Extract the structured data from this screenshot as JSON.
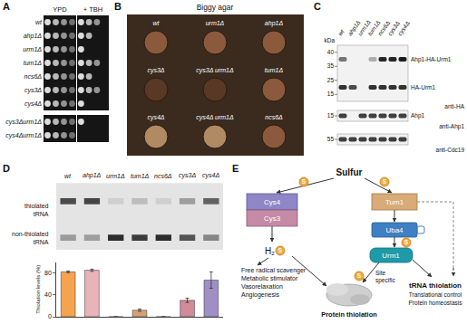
{
  "panels": {
    "A": {
      "letter": "A",
      "columns": [
        "YPD",
        "+ TBH"
      ],
      "groups": [
        [
          {
            "strain": "wt",
            "growth": [
              4,
              3
            ]
          },
          {
            "strain": "ahp1Δ",
            "growth": [
              4,
              2
            ]
          },
          {
            "strain": "urm1Δ",
            "growth": [
              4,
              1
            ]
          },
          {
            "strain": "tum1Δ",
            "growth": [
              4,
              3
            ]
          },
          {
            "strain": "ncs6Δ",
            "growth": [
              4,
              2
            ]
          },
          {
            "strain": "cys3Δ",
            "growth": [
              4,
              3
            ]
          },
          {
            "strain": "cys4Δ",
            "growth": [
              4,
              1
            ]
          }
        ],
        [
          {
            "strain": "cys3Δurm1Δ",
            "growth": [
              4,
              1
            ]
          },
          {
            "strain": "cys4Δurm1Δ",
            "growth": [
              4,
              0
            ]
          }
        ]
      ]
    },
    "B": {
      "letter": "B",
      "title": "Biggy agar",
      "plates": [
        [
          {
            "strain": "wt",
            "color": "#8b5a3c"
          },
          {
            "strain": "urm1Δ",
            "color": "#8b5a3c"
          },
          {
            "strain": "ahp1Δ",
            "color": "#8b5a3c"
          }
        ],
        [
          {
            "strain": "cys3Δ",
            "color": "#5a3826"
          },
          {
            "strain": "cys3Δ urm1Δ",
            "color": "#5a3826"
          },
          {
            "strain": "tum1Δ",
            "color": "#8b5a3c"
          }
        ],
        [
          {
            "strain": "cys4Δ",
            "color": "#b08a62"
          },
          {
            "strain": "cys4Δ urm1Δ",
            "color": "#b08a62"
          },
          {
            "strain": "ncs6Δ",
            "color": "#8b5a3c"
          }
        ]
      ]
    },
    "C": {
      "letter": "C",
      "unit": "kDa",
      "lanes": [
        "wt",
        "ahp1Δ",
        "urm1Δ",
        "tum1Δ",
        "ncs6Δ",
        "cys3Δ",
        "cys4Δ"
      ],
      "blots": [
        {
          "markers": [
            40,
            35,
            25,
            15
          ],
          "bands": [
            {
              "label": "Ahp1-HA-Urm1",
              "intensity": [
                0.55,
                0,
                0,
                0.3,
                0.9,
                0.9,
                0.95
              ]
            },
            {
              "label": "HA-Urm1",
              "intensity": [
                0.85,
                0.75,
                0,
                0.85,
                0.85,
                0.85,
                0.85
              ]
            }
          ],
          "antibody": "anti-HA"
        },
        {
          "markers": [
            15
          ],
          "bands": [
            {
              "label": "Ahp1",
              "intensity": [
                0.8,
                0,
                0.8,
                0.8,
                0.8,
                0.8,
                0.8
              ]
            }
          ],
          "antibody": "anti-Ahp1"
        },
        {
          "markers": [
            55
          ],
          "bands": [
            {
              "intensity": [
                0.8,
                0.8,
                0.8,
                0.8,
                0.8,
                0.8,
                0.8
              ]
            }
          ],
          "antibody": "anti-Cdc19"
        }
      ]
    },
    "D": {
      "letter": "D",
      "gel_labels": {
        "thiolated": [
          "thiolated",
          "tRNA"
        ],
        "non_thiolated": [
          "non-thiolated",
          "tRNA"
        ]
      }
    },
    "E": {
      "letter": "E",
      "source": "Sulfur",
      "symbol": "S",
      "nodes": {
        "cys4": "Cys4",
        "cys3": "Cys3",
        "tum1": "Tum1",
        "uba4": "Uba4",
        "urm1": "Urm1"
      },
      "h2s": "H₂",
      "h2s_roles": [
        "Free radical scavenger",
        "Metabolic stimulator",
        "Vasorelaxation",
        "Angiogenesis"
      ],
      "protein": "Protein thiolation",
      "site": [
        "Site",
        "specific"
      ],
      "trna": {
        "title": "tRNA thiolation",
        "roles": [
          "Translational control",
          "Protein homeostasis"
        ]
      }
    }
  },
  "chart_data": {
    "type": "bar",
    "categories": [
      "wt",
      "ahp1Δ",
      "urm1Δ",
      "tum1Δ",
      "ncs6Δ",
      "cys3Δ",
      "cys4Δ"
    ],
    "values": [
      82,
      85,
      0,
      12,
      0,
      30,
      67
    ],
    "errors": [
      1.5,
      2,
      0,
      2,
      0,
      4,
      15
    ],
    "colors": [
      "#f5a251",
      "#e8b4b8",
      "#c9a0a0",
      "#d4a373",
      "#c9a0a0",
      "#d08c9a",
      "#9f8fc4"
    ],
    "ylabel": "Thiolation levels (%)",
    "ylim": [
      0,
      100
    ],
    "yticks": [
      0,
      40,
      80
    ],
    "grid": false,
    "tick_labels": "y"
  }
}
